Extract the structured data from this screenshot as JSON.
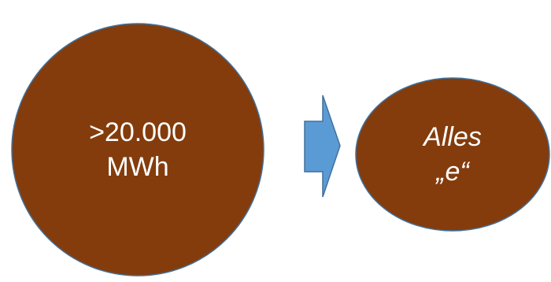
{
  "nodes": {
    "source": {
      "line1": ">20.000",
      "line2": "MWh"
    },
    "target": {
      "line1": "Alles",
      "line2": "„e“"
    }
  },
  "colors": {
    "circle_fill": "#843C0C",
    "circle_stroke": "#41719C",
    "arrow_fill": "#5B9BD5",
    "arrow_stroke": "#41719C",
    "text": "#FFFFFF"
  }
}
